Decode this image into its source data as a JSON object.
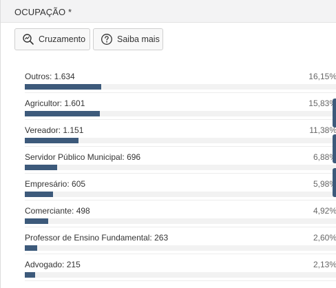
{
  "panel": {
    "title": "OCUPAÇÃO *"
  },
  "toolbar": {
    "cross_label": "Cruzamento",
    "cross_icon": "chart-search-icon",
    "info_label": "Saiba mais",
    "info_icon": "question-circle-icon"
  },
  "colors": {
    "bar": "#3d5a7b",
    "track": "#f2f2f2"
  },
  "occupations": [
    {
      "label": "Outros: 1.634",
      "percent": "16,15%",
      "share": 16.15
    },
    {
      "label": "Agricultor: 1.601",
      "percent": "15,83%",
      "share": 15.83
    },
    {
      "label": "Vereador: 1.151",
      "percent": "11,38%",
      "share": 11.38
    },
    {
      "label": "Servidor Público Municipal: 696",
      "percent": "6,88%",
      "share": 6.88
    },
    {
      "label": "Empresário: 605",
      "percent": "5,98%",
      "share": 5.98
    },
    {
      "label": "Comerciante: 498",
      "percent": "4,92%",
      "share": 4.92
    },
    {
      "label": "Professor de Ensino Fundamental: 263",
      "percent": "2,60%",
      "share": 2.6
    },
    {
      "label": "Advogado: 215",
      "percent": "2,13%",
      "share": 2.13
    }
  ]
}
